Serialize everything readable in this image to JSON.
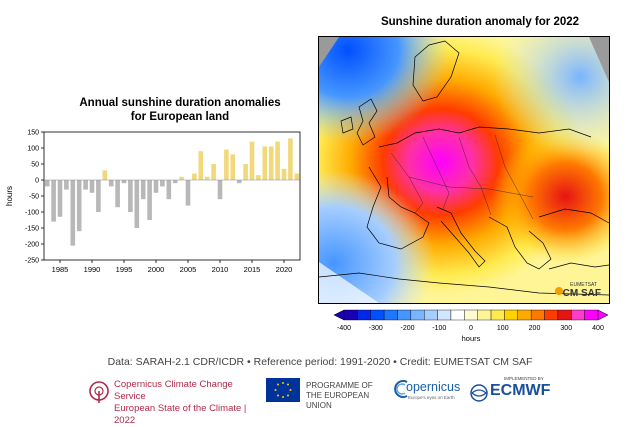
{
  "chart_data": [
    {
      "type": "bar",
      "title": "Annual sunshine duration anomalies for European land",
      "title_line1": "Annual sunshine duration anomalies",
      "title_line2": "for European land",
      "xlabel": "",
      "ylabel": "hours",
      "ylim": [
        -250,
        150
      ],
      "yticks": [
        -250,
        -200,
        -150,
        -100,
        -50,
        0,
        50,
        100,
        150
      ],
      "xticks": [
        1985,
        1990,
        1995,
        2000,
        2005,
        2010,
        2015,
        2020
      ],
      "x": [
        1983,
        1984,
        1985,
        1986,
        1987,
        1988,
        1989,
        1990,
        1991,
        1992,
        1993,
        1994,
        1995,
        1996,
        1997,
        1998,
        1999,
        2000,
        2001,
        2002,
        2003,
        2004,
        2005,
        2006,
        2007,
        2008,
        2009,
        2010,
        2011,
        2012,
        2013,
        2014,
        2015,
        2016,
        2017,
        2018,
        2019,
        2020,
        2021,
        2022
      ],
      "values": [
        -20,
        -130,
        -115,
        -30,
        -205,
        -160,
        -30,
        -40,
        -100,
        30,
        -20,
        -85,
        -10,
        -100,
        -150,
        -60,
        -125,
        -40,
        -20,
        -60,
        -10,
        10,
        -80,
        20,
        90,
        10,
        50,
        -60,
        95,
        80,
        -10,
        50,
        120,
        15,
        105,
        105,
        120,
        35,
        130,
        20
      ],
      "colors": {
        "negative": "#b8b8b8",
        "positive": "#f1d87a",
        "latest": "#f1d87a"
      }
    },
    {
      "type": "heatmap",
      "title": "Sunshine duration anomaly for 2022",
      "colorbar_ticks": [
        "-400",
        "-300",
        "-200",
        "-100",
        "0",
        "100",
        "200",
        "300",
        "400"
      ],
      "colorbar_label": "hours",
      "colorbar_colors": [
        "#1a00b4",
        "#0028e6",
        "#0050ff",
        "#1e78ff",
        "#4696ff",
        "#78b4ff",
        "#a5cdff",
        "#d2e6ff",
        "#ffffff",
        "#fffad2",
        "#fff596",
        "#ffeb50",
        "#ffd200",
        "#ffaa00",
        "#ff7800",
        "#ff3c00",
        "#e61414",
        "#ff3cc8",
        "#ff00ff"
      ]
    }
  ],
  "map": {
    "logo_top": "EUMETSAT",
    "logo_main": "CM SAF"
  },
  "credit": "Data: SARAH-2.1 CDR/ICDR • Reference period: 1991-2020 • Credit: EUMETSAT CM SAF",
  "logos": {
    "c3s_line1": "Copernicus Climate Change Service",
    "c3s_line2": "European State of the Climate | 2022",
    "eu_line1": "PROGRAMME OF",
    "eu_line2": "THE EUROPEAN UNION",
    "copernicus": "opernicus",
    "copernicus_sub": "Europe's eyes on Earth",
    "ecmwf_small": "IMPLEMENTED BY",
    "ecmwf": "ECMWF"
  }
}
